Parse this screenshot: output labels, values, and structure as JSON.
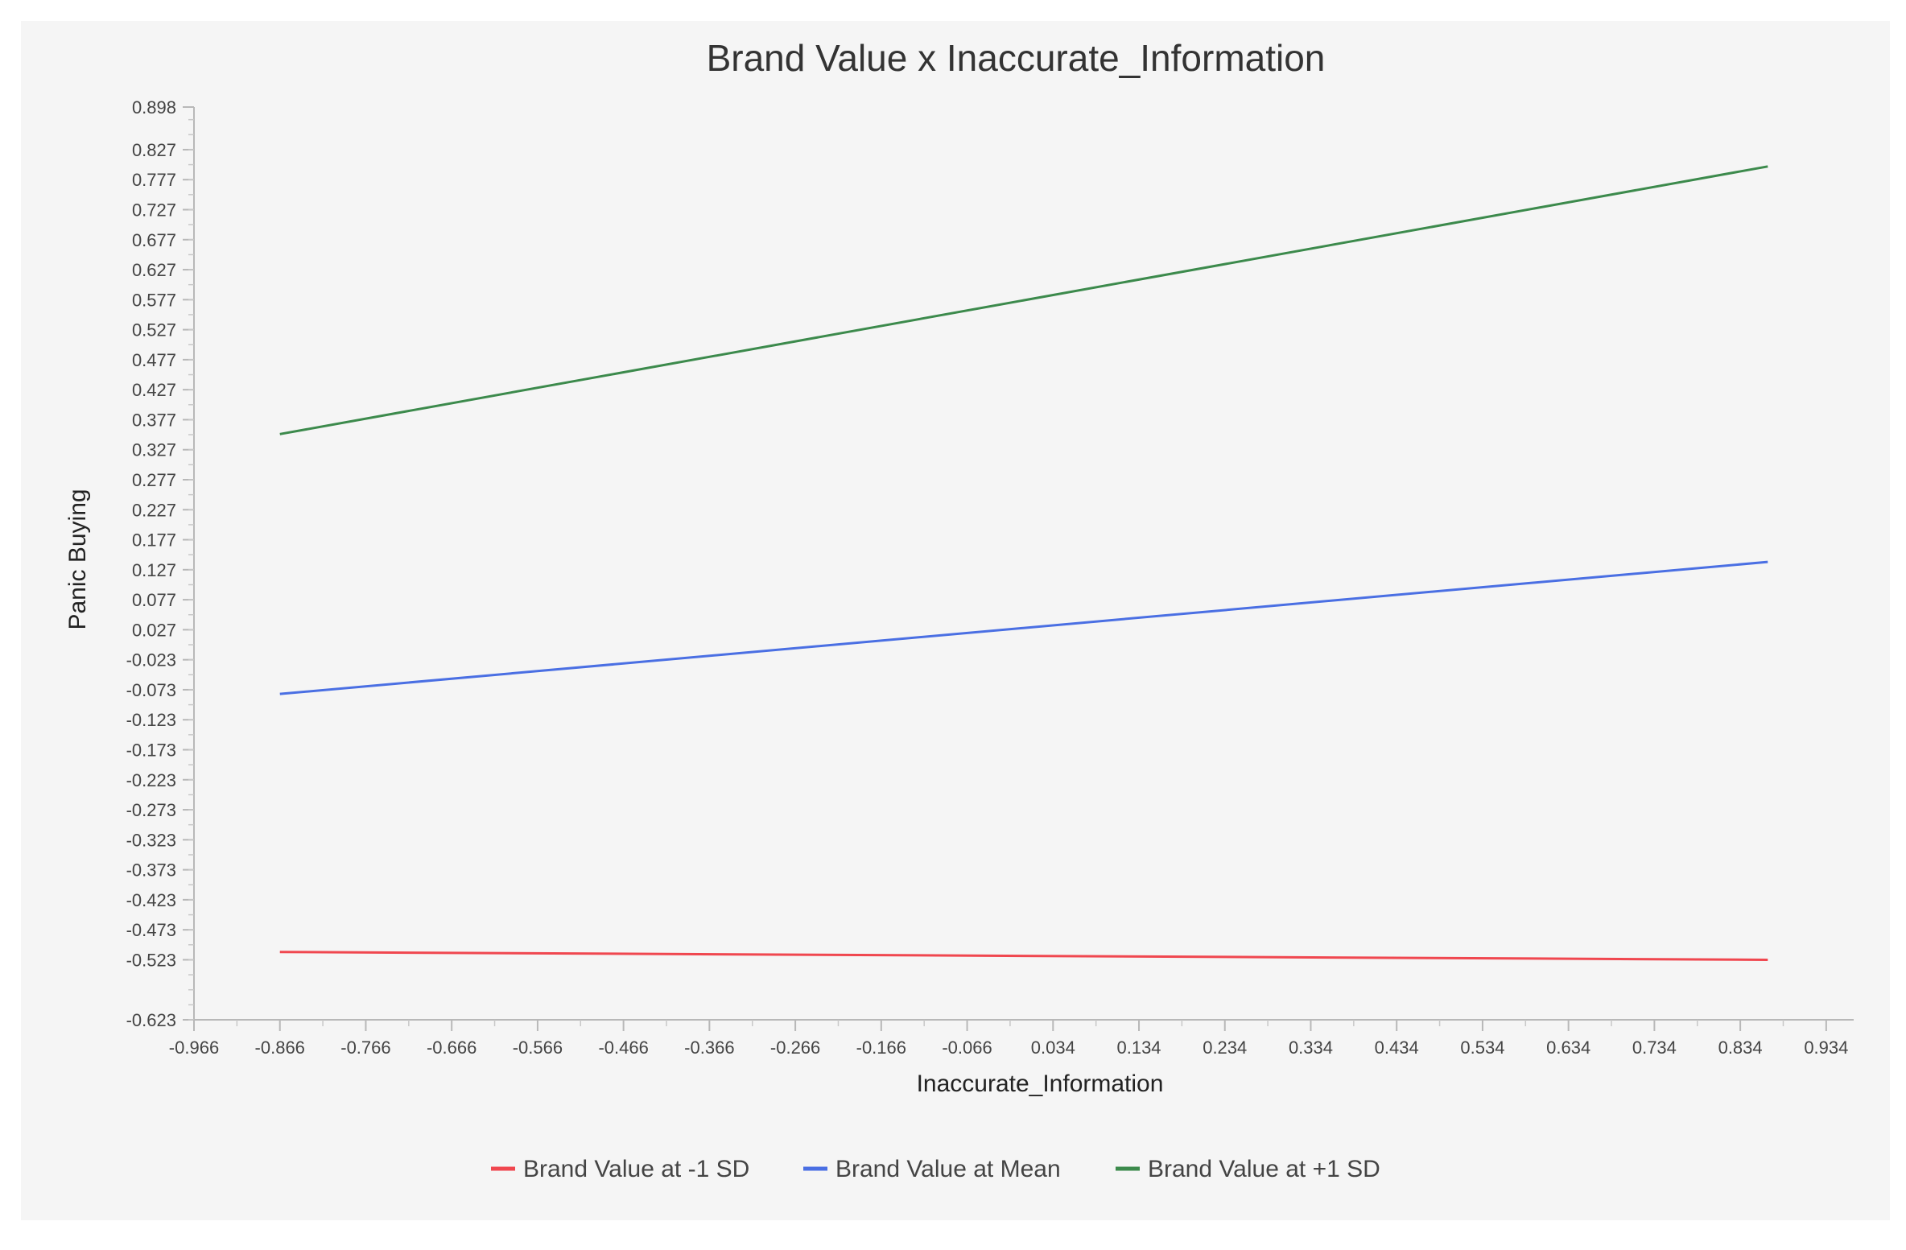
{
  "chart_data": {
    "type": "line",
    "title": "Brand Value x Inaccurate_Information",
    "xlabel": "Inaccurate_Information",
    "ylabel": "Panic Buying",
    "xlim": [
      -0.966,
      0.966
    ],
    "ylim": [
      -0.623,
      0.898
    ],
    "x_ticks": [
      "-0.966",
      "-0.866",
      "-0.766",
      "-0.666",
      "-0.566",
      "-0.466",
      "-0.366",
      "-0.266",
      "-0.166",
      "-0.066",
      "0.034",
      "0.134",
      "0.234",
      "0.334",
      "0.434",
      "0.534",
      "0.634",
      "0.734",
      "0.834",
      "0.934"
    ],
    "y_ticks": [
      "0.898",
      "0.827",
      "0.777",
      "0.727",
      "0.677",
      "0.627",
      "0.577",
      "0.527",
      "0.477",
      "0.427",
      "0.377",
      "0.327",
      "0.277",
      "0.227",
      "0.177",
      "0.127",
      "0.077",
      "0.027",
      "-0.023",
      "-0.073",
      "-0.123",
      "-0.173",
      "-0.223",
      "-0.273",
      "-0.323",
      "-0.373",
      "-0.423",
      "-0.473",
      "-0.523",
      "-0.623"
    ],
    "grid": false,
    "legend_position": "bottom",
    "series": [
      {
        "name": "Brand Value at -1 SD",
        "color": "#f0474f",
        "x": [
          -0.866,
          0.866
        ],
        "y": [
          -0.51,
          -0.523
        ]
      },
      {
        "name": "Brand Value at Mean",
        "color": "#4a6fe3",
        "x": [
          -0.866,
          0.866
        ],
        "y": [
          -0.08,
          0.14
        ]
      },
      {
        "name": "Brand Value at +1 SD",
        "color": "#3c8a4c",
        "x": [
          -0.866,
          0.866
        ],
        "y": [
          0.353,
          0.799
        ]
      }
    ]
  }
}
